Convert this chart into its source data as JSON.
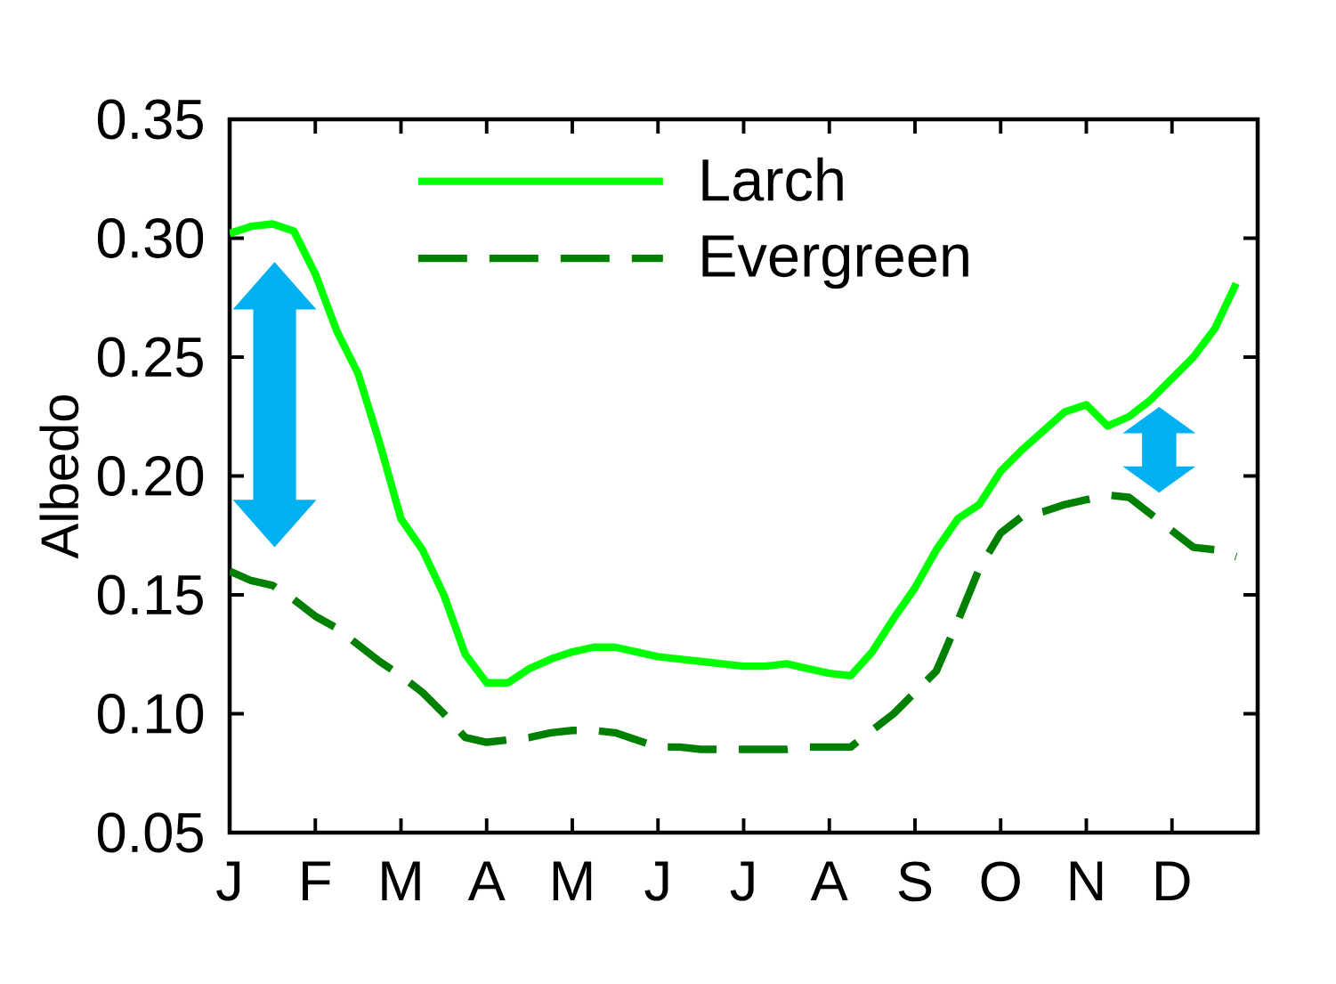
{
  "chart_data": {
    "type": "line",
    "ylabel": "Albedo",
    "categories": [
      "J",
      null,
      null,
      null,
      "F",
      null,
      null,
      null,
      "M",
      null,
      null,
      null,
      "A",
      null,
      null,
      null,
      "M",
      null,
      null,
      null,
      "J",
      null,
      null,
      null,
      "J",
      null,
      null,
      null,
      "A",
      null,
      null,
      null,
      "S",
      null,
      null,
      null,
      "O",
      null,
      null,
      null,
      "N",
      null,
      null,
      null,
      "D",
      null,
      null,
      null
    ],
    "ylim": [
      0.05,
      0.35
    ],
    "yticks": [
      {
        "value": 0.05,
        "label": "0.05"
      },
      {
        "value": 0.1,
        "label": "0.10"
      },
      {
        "value": 0.15,
        "label": "0.15"
      },
      {
        "value": 0.2,
        "label": "0.20"
      },
      {
        "value": 0.25,
        "label": "0.25"
      },
      {
        "value": 0.3,
        "label": "0.30"
      },
      {
        "value": 0.35,
        "label": "0.35"
      }
    ],
    "legend": "top",
    "series": [
      {
        "name": "Larch",
        "color": "#00ff00",
        "line_style": "solid",
        "values": [
          0.302,
          0.305,
          0.306,
          0.303,
          0.285,
          0.261,
          0.243,
          0.214,
          0.182,
          0.169,
          0.15,
          0.125,
          0.113,
          0.113,
          0.119,
          0.123,
          0.126,
          0.128,
          0.128,
          0.126,
          0.124,
          0.123,
          0.122,
          0.121,
          0.12,
          0.12,
          0.121,
          0.119,
          0.117,
          0.116,
          0.126,
          0.14,
          0.153,
          0.169,
          0.182,
          0.188,
          0.202,
          0.211,
          0.219,
          0.227,
          0.23,
          0.221,
          0.225,
          0.232,
          0.241,
          0.25,
          0.262,
          0.281
        ]
      },
      {
        "name": "Evergreen",
        "color": "#008000",
        "line_style": "dashed",
        "values": [
          0.16,
          0.156,
          0.154,
          0.148,
          0.141,
          0.136,
          0.129,
          0.122,
          0.116,
          0.109,
          0.1,
          0.09,
          0.088,
          0.089,
          0.09,
          0.092,
          0.093,
          0.093,
          0.092,
          0.089,
          0.086,
          0.086,
          0.085,
          0.085,
          0.085,
          0.085,
          0.085,
          0.086,
          0.086,
          0.086,
          0.093,
          0.1,
          0.109,
          0.118,
          0.139,
          0.161,
          0.176,
          0.183,
          0.185,
          0.188,
          0.19,
          0.192,
          0.191,
          0.184,
          0.177,
          0.17,
          0.169,
          0.166
        ]
      }
    ]
  }
}
